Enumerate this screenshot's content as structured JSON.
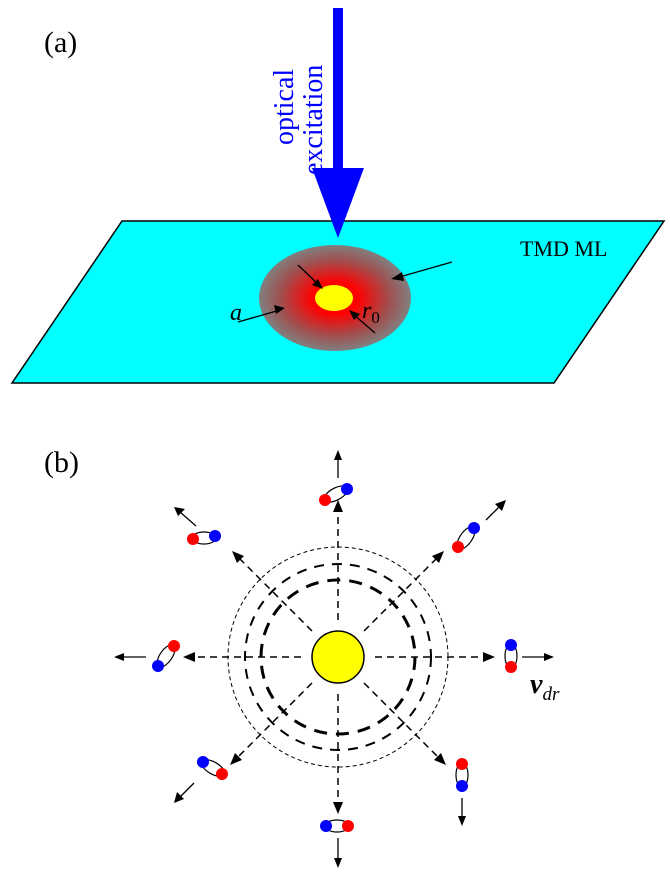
{
  "panel_a": {
    "label": "(a)",
    "beam_label_line1": "optical",
    "beam_label_line2": "excitation",
    "layer_label": "TMD ML",
    "radius_a_label": "a",
    "radius_r0_main": "r",
    "radius_r0_sub": "0"
  },
  "panel_b": {
    "label": "(b)",
    "velocity_main": "v",
    "velocity_sub": "dr"
  },
  "colors": {
    "beam": "#0000ff",
    "layer": "#00ffff",
    "spot_outer": "#808080",
    "spot_inner": "#ff0000",
    "core": "#ffff00",
    "electron": "#0000ff",
    "hole": "#ff0000"
  }
}
